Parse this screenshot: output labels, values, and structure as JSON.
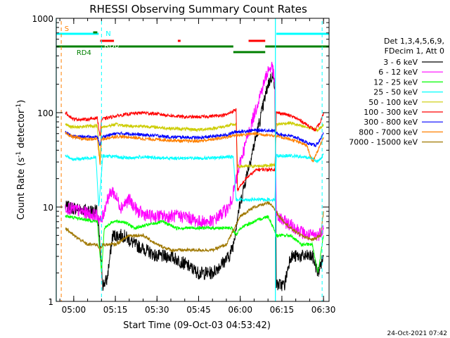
{
  "chart_data": {
    "type": "line",
    "title": "RHESSI Observing Summary Count Rates",
    "ylabel_main": "Count Rate (s",
    "ylabel_sup": "-1",
    "ylabel_tail": " detector",
    "ylabel_sup2": "-1",
    "ylabel_end": ")",
    "xlabel": "Start Time (09-Oct-03 04:53:42)",
    "footer_date": "24-Oct-2021 07:42",
    "y_scale": "log",
    "ylim": [
      1,
      1000
    ],
    "xlim": [
      "04:53:42",
      "06:32:00"
    ],
    "ytick_labels": [
      "1",
      "10",
      "100",
      "1000"
    ],
    "xticks": [
      {
        "time": "05:00",
        "label": "05:00"
      },
      {
        "time": "05:15",
        "label": "05:15"
      },
      {
        "time": "05:30",
        "label": "05:30"
      },
      {
        "time": "05:45",
        "label": "05:45"
      },
      {
        "time": "06:00",
        "label": "06:00"
      },
      {
        "time": "06:15",
        "label": "06:15"
      },
      {
        "time": "06:30",
        "label": "06:30"
      }
    ],
    "legend_header": [
      "Det 1,3,4,5,6,9,",
      "FDecim 1, Att 0"
    ],
    "legend_position": "right",
    "series": [
      {
        "name": "3 - 6 keV",
        "color": "#000000",
        "points": [
          [
            "04:57:00",
            10
          ],
          [
            "05:08:30",
            9
          ],
          [
            "05:10:30",
            1.5
          ],
          [
            "05:12:00",
            1.7
          ],
          [
            "05:14:00",
            5
          ],
          [
            "05:18:00",
            5
          ],
          [
            "05:22:00",
            4
          ],
          [
            "05:26:00",
            3.5
          ],
          [
            "05:30:00",
            3
          ],
          [
            "05:35:00",
            3
          ],
          [
            "05:40:00",
            2.5
          ],
          [
            "05:45:00",
            2
          ],
          [
            "05:50:00",
            2
          ],
          [
            "05:56:00",
            3
          ],
          [
            "05:57:30",
            4
          ],
          [
            "05:59:00",
            8
          ],
          [
            "06:02:00",
            20
          ],
          [
            "06:06:00",
            60
          ],
          [
            "06:10:00",
            200
          ],
          [
            "06:11:30",
            250
          ],
          [
            "06:12:30",
            200
          ],
          [
            "06:13:00",
            1.5
          ],
          [
            "06:16:00",
            1.5
          ],
          [
            "06:18:00",
            3
          ],
          [
            "06:22:00",
            3
          ],
          [
            "06:26:00",
            3
          ],
          [
            "06:28:00",
            2
          ],
          [
            "06:30:00",
            3
          ]
        ]
      },
      {
        "name": "6 - 12 keV",
        "color": "#ff00ff",
        "points": [
          [
            "04:57:00",
            10
          ],
          [
            "05:08:30",
            8
          ],
          [
            "05:10:00",
            7
          ],
          [
            "05:12:00",
            12
          ],
          [
            "05:14:00",
            15
          ],
          [
            "05:17:00",
            10
          ],
          [
            "05:20:00",
            12
          ],
          [
            "05:23:00",
            9
          ],
          [
            "05:27:00",
            8
          ],
          [
            "05:30:00",
            8
          ],
          [
            "05:35:00",
            8
          ],
          [
            "05:40:00",
            8
          ],
          [
            "05:45:00",
            7
          ],
          [
            "05:50:00",
            7
          ],
          [
            "05:56:00",
            10
          ],
          [
            "05:57:30",
            14
          ],
          [
            "06:00:00",
            30
          ],
          [
            "06:03:00",
            60
          ],
          [
            "06:07:00",
            150
          ],
          [
            "06:10:00",
            280
          ],
          [
            "06:11:30",
            310
          ],
          [
            "06:12:30",
            200
          ],
          [
            "06:13:00",
            8
          ],
          [
            "06:16:00",
            7
          ],
          [
            "06:20:00",
            6
          ],
          [
            "06:24:00",
            5
          ],
          [
            "06:28:00",
            5
          ],
          [
            "06:30:00",
            6
          ]
        ]
      },
      {
        "name": "12 - 25 keV",
        "color": "#00ff00",
        "points": [
          [
            "04:57:00",
            8
          ],
          [
            "05:08:30",
            7
          ],
          [
            "05:10:00",
            2
          ],
          [
            "05:11:00",
            6
          ],
          [
            "05:14:00",
            7
          ],
          [
            "05:18:00",
            7
          ],
          [
            "05:22:00",
            6
          ],
          [
            "05:27:00",
            6.5
          ],
          [
            "05:32:00",
            7
          ],
          [
            "05:37:00",
            6
          ],
          [
            "05:42:00",
            6
          ],
          [
            "05:47:00",
            6
          ],
          [
            "05:53:00",
            6
          ],
          [
            "05:57:00",
            6
          ],
          [
            "05:58:30",
            5
          ],
          [
            "06:00:00",
            6
          ],
          [
            "06:05:00",
            7
          ],
          [
            "06:10:00",
            8
          ],
          [
            "06:12:00",
            6
          ],
          [
            "06:13:00",
            5
          ],
          [
            "06:18:00",
            5
          ],
          [
            "06:22:00",
            4
          ],
          [
            "06:26:00",
            4
          ],
          [
            "06:28:00",
            2
          ],
          [
            "06:30:00",
            5
          ]
        ]
      },
      {
        "name": "25 - 50 keV",
        "color": "#00ffff",
        "points": [
          [
            "04:57:00",
            35
          ],
          [
            "05:00:00",
            32
          ],
          [
            "05:05:00",
            33
          ],
          [
            "05:08:00",
            34
          ],
          [
            "05:09:00",
            10
          ],
          [
            "05:10:30",
            35
          ],
          [
            "05:15:00",
            34
          ],
          [
            "05:20:00",
            33
          ],
          [
            "05:25:00",
            34
          ],
          [
            "05:30:00",
            33
          ],
          [
            "05:35:00",
            33
          ],
          [
            "05:40:00",
            33
          ],
          [
            "05:45:00",
            33
          ],
          [
            "05:50:00",
            33
          ],
          [
            "05:55:00",
            34
          ],
          [
            "05:57:30",
            34
          ],
          [
            "05:58:30",
            12
          ],
          [
            "06:05:00",
            12
          ],
          [
            "06:10:00",
            12
          ],
          [
            "06:12:30",
            12
          ],
          [
            "06:13:00",
            35
          ],
          [
            "06:18:00",
            35
          ],
          [
            "06:22:00",
            34
          ],
          [
            "06:26:00",
            33
          ],
          [
            "06:28:00",
            30
          ],
          [
            "06:30:00",
            36
          ]
        ]
      },
      {
        "name": "50 - 100 keV",
        "color": "#cccc00",
        "points": [
          [
            "04:57:00",
            75
          ],
          [
            "05:00:00",
            70
          ],
          [
            "05:05:00",
            72
          ],
          [
            "05:08:30",
            72
          ],
          [
            "05:09:30",
            30
          ],
          [
            "05:10:00",
            70
          ],
          [
            "05:15:00",
            75
          ],
          [
            "05:20:00",
            72
          ],
          [
            "05:25:00",
            72
          ],
          [
            "05:30:00",
            70
          ],
          [
            "05:35:00",
            68
          ],
          [
            "05:40:00",
            67
          ],
          [
            "05:45:00",
            66
          ],
          [
            "05:50:00",
            68
          ],
          [
            "05:55:00",
            72
          ],
          [
            "05:58:30",
            76
          ],
          [
            "05:59:00",
            27
          ],
          [
            "06:05:00",
            27
          ],
          [
            "06:12:30",
            28
          ],
          [
            "06:13:00",
            75
          ],
          [
            "06:18:00",
            78
          ],
          [
            "06:22:00",
            72
          ],
          [
            "06:26:00",
            68
          ],
          [
            "06:28:00",
            65
          ],
          [
            "06:30:00",
            75
          ]
        ]
      },
      {
        "name": "100 - 300 keV",
        "color": "#ff0000",
        "points": [
          [
            "04:57:00",
            100
          ],
          [
            "05:00:00",
            85
          ],
          [
            "05:05:00",
            85
          ],
          [
            "05:08:30",
            88
          ],
          [
            "05:09:30",
            55
          ],
          [
            "05:10:00",
            85
          ],
          [
            "05:15:00",
            92
          ],
          [
            "05:20:00",
            97
          ],
          [
            "05:25:00",
            100
          ],
          [
            "05:30:00",
            97
          ],
          [
            "05:35:00",
            93
          ],
          [
            "05:40:00",
            90
          ],
          [
            "05:45:00",
            90
          ],
          [
            "05:50:00",
            92
          ],
          [
            "05:55:00",
            95
          ],
          [
            "05:58:30",
            108
          ],
          [
            "05:59:00",
            15
          ],
          [
            "06:02:00",
            20
          ],
          [
            "06:06:00",
            25
          ],
          [
            "06:10:00",
            25
          ],
          [
            "06:12:30",
            25
          ],
          [
            "06:13:00",
            100
          ],
          [
            "06:16:00",
            97
          ],
          [
            "06:20:00",
            88
          ],
          [
            "06:24:00",
            75
          ],
          [
            "06:27:00",
            65
          ],
          [
            "06:29:00",
            80
          ],
          [
            "06:30:00",
            100
          ]
        ]
      },
      {
        "name": "300 - 800 keV",
        "color": "#0000ff",
        "points": [
          [
            "04:57:00",
            62
          ],
          [
            "05:00:00",
            56
          ],
          [
            "05:05:00",
            55
          ],
          [
            "05:08:30",
            55
          ],
          [
            "05:09:30",
            45
          ],
          [
            "05:10:00",
            55
          ],
          [
            "05:15:00",
            60
          ],
          [
            "05:20:00",
            60
          ],
          [
            "05:25:00",
            58
          ],
          [
            "05:30:00",
            57
          ],
          [
            "05:35:00",
            55
          ],
          [
            "05:40:00",
            55
          ],
          [
            "05:45:00",
            54
          ],
          [
            "05:50:00",
            56
          ],
          [
            "05:55:00",
            58
          ],
          [
            "05:58:30",
            63
          ],
          [
            "06:00:00",
            63
          ],
          [
            "06:05:00",
            65
          ],
          [
            "06:10:00",
            65
          ],
          [
            "06:12:30",
            64
          ],
          [
            "06:13:00",
            60
          ],
          [
            "06:16:00",
            58
          ],
          [
            "06:20:00",
            55
          ],
          [
            "06:24:00",
            48
          ],
          [
            "06:27:00",
            45
          ],
          [
            "06:29:00",
            52
          ],
          [
            "06:30:00",
            60
          ]
        ]
      },
      {
        "name": "800 - 7000 keV",
        "color": "#ff8000",
        "points": [
          [
            "04:57:00",
            60
          ],
          [
            "05:00:00",
            55
          ],
          [
            "05:05:00",
            52
          ],
          [
            "05:08:30",
            53
          ],
          [
            "05:09:30",
            28
          ],
          [
            "05:10:00",
            52
          ],
          [
            "05:15:00",
            56
          ],
          [
            "05:20:00",
            55
          ],
          [
            "05:25:00",
            53
          ],
          [
            "05:30:00",
            52
          ],
          [
            "05:35:00",
            51
          ],
          [
            "05:40:00",
            50
          ],
          [
            "05:45:00",
            50
          ],
          [
            "05:50:00",
            52
          ],
          [
            "05:55:00",
            55
          ],
          [
            "05:58:30",
            58
          ],
          [
            "06:00:00",
            58
          ],
          [
            "06:05:00",
            60
          ],
          [
            "06:10:00",
            58
          ],
          [
            "06:12:30",
            57
          ],
          [
            "06:13:00",
            56
          ],
          [
            "06:16:00",
            54
          ],
          [
            "06:20:00",
            50
          ],
          [
            "06:24:00",
            45
          ],
          [
            "06:26:00",
            30
          ],
          [
            "06:28:00",
            40
          ],
          [
            "06:30:00",
            55
          ]
        ]
      },
      {
        "name": "7000 - 15000 keV",
        "color": "#a07800",
        "points": [
          [
            "04:57:00",
            6
          ],
          [
            "05:00:00",
            5
          ],
          [
            "05:05:00",
            4
          ],
          [
            "05:08:30",
            4
          ],
          [
            "05:09:30",
            3.5
          ],
          [
            "05:10:30",
            4
          ],
          [
            "05:15:00",
            4
          ],
          [
            "05:20:00",
            5
          ],
          [
            "05:25:00",
            5
          ],
          [
            "05:30:00",
            4
          ],
          [
            "05:35:00",
            3.5
          ],
          [
            "05:40:00",
            3.5
          ],
          [
            "05:45:00",
            3.5
          ],
          [
            "05:50:00",
            3.5
          ],
          [
            "05:55:00",
            4
          ],
          [
            "05:58:00",
            6
          ],
          [
            "06:00:00",
            8
          ],
          [
            "06:05:00",
            10
          ],
          [
            "06:10:00",
            11
          ],
          [
            "06:12:00",
            10
          ],
          [
            "06:14:00",
            8
          ],
          [
            "06:18:00",
            6
          ],
          [
            "06:22:00",
            5
          ],
          [
            "06:26:00",
            4.5
          ],
          [
            "06:29:00",
            5
          ],
          [
            "06:30:00",
            9
          ]
        ]
      }
    ],
    "vertical_markers": [
      {
        "time": "04:55:30",
        "color": "#ff8000"
      },
      {
        "time": "05:10:00",
        "color": "#00ffff"
      },
      {
        "time": "06:29:30",
        "color": "#00ffff"
      }
    ],
    "vertical_solid_markers": [
      {
        "time": "04:53:42",
        "color": "#00ffff"
      },
      {
        "time": "06:12:40",
        "color": "#00ffff"
      }
    ],
    "flag_bars": [
      {
        "label": "",
        "color": "#00ffff",
        "level": 1,
        "segments": [
          [
            "04:53:42",
            "05:09:00"
          ],
          [
            "06:13:00",
            "06:32:00"
          ]
        ]
      },
      {
        "label": "",
        "color": "#ff0000",
        "level": 2,
        "segments": [
          [
            "05:09:30",
            "05:14:30"
          ],
          [
            "05:37:30",
            "05:38:30"
          ],
          [
            "06:03:00",
            "06:09:00"
          ]
        ]
      },
      {
        "label": "",
        "color": "#008000",
        "level": 3,
        "segments": [
          [
            "04:53:42",
            "05:57:30"
          ],
          [
            "06:09:00",
            "06:32:00"
          ]
        ]
      },
      {
        "label": "",
        "color": "#008000",
        "level": 4,
        "segments": [
          [
            "05:57:30",
            "06:09:00"
          ]
        ]
      },
      {
        "label": "",
        "color": "#008000",
        "level": 5,
        "segments": [
          [
            "05:07:00",
            "05:08:30"
          ]
        ]
      }
    ],
    "flag_labels": [
      {
        "text": "S",
        "color": "#ff8000",
        "time": "04:56:10",
        "row": 0
      },
      {
        "text": "N",
        "color": "#00ffff",
        "time": "05:11:00",
        "row": 1
      },
      {
        "text": "F",
        "color": "#ffffff",
        "time": "05:08:30",
        "row": 2
      },
      {
        "text": "RD0",
        "color": "#ffffff",
        "time": "05:10:30",
        "row": 3
      },
      {
        "text": "RD4",
        "color": "#008000",
        "time": "05:00:30",
        "row": 5
      }
    ]
  }
}
